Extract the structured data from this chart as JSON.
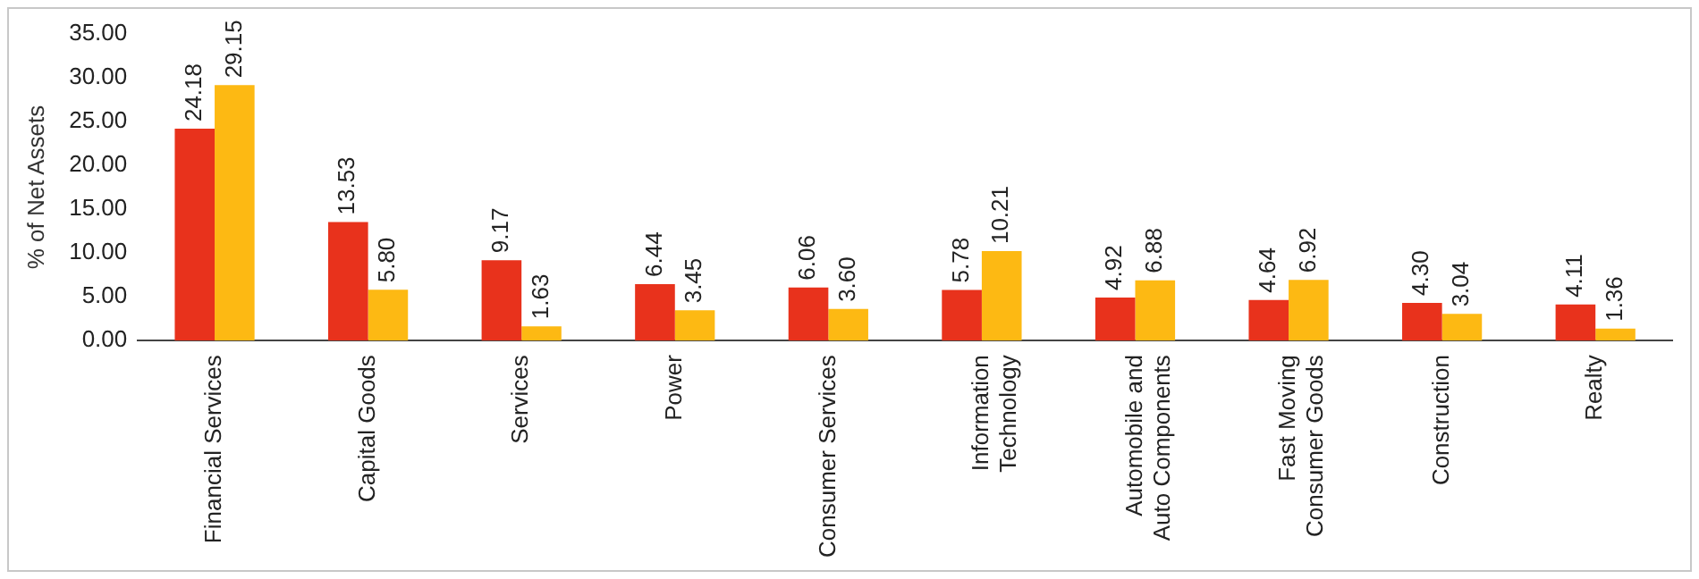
{
  "chart_data": {
    "type": "bar",
    "ylabel": "% of Net Assets",
    "categories": [
      "Financial Services",
      "Capital Goods",
      "Services",
      "Power",
      "Consumer Services",
      "Information\nTechnology",
      "Automobile and\nAuto Components",
      "Fast Moving\nConsumer Goods",
      "Construction",
      "Realty"
    ],
    "series": [
      {
        "color": "#e8321c",
        "values": [
          24.18,
          13.53,
          9.17,
          6.44,
          6.06,
          5.78,
          4.92,
          4.64,
          4.3,
          4.11
        ],
        "value_labels": [
          "24.18",
          "13.53",
          "9.17",
          "6.44",
          "6.06",
          "5.78",
          "4.92",
          "4.64",
          "4.30",
          "4.11"
        ]
      },
      {
        "color": "#fdb913",
        "values": [
          29.15,
          5.8,
          1.63,
          3.45,
          3.6,
          10.21,
          6.88,
          6.92,
          3.04,
          1.36
        ],
        "value_labels": [
          "29.15",
          "5.80",
          "1.63",
          "3.45",
          "3.60",
          "10.21",
          "6.88",
          "6.92",
          "3.04",
          "1.36"
        ]
      }
    ],
    "ylim": [
      0,
      35
    ],
    "yticks": [
      {
        "value": 0,
        "label": "0.00"
      },
      {
        "value": 5,
        "label": "5.00"
      },
      {
        "value": 10,
        "label": "10.00"
      },
      {
        "value": 15,
        "label": "15.00"
      },
      {
        "value": 20,
        "label": "20.00"
      },
      {
        "value": 25,
        "label": "25.00"
      },
      {
        "value": 30,
        "label": "30.00"
      },
      {
        "value": 35,
        "label": "35.00"
      }
    ],
    "grid": false,
    "legend": false
  }
}
